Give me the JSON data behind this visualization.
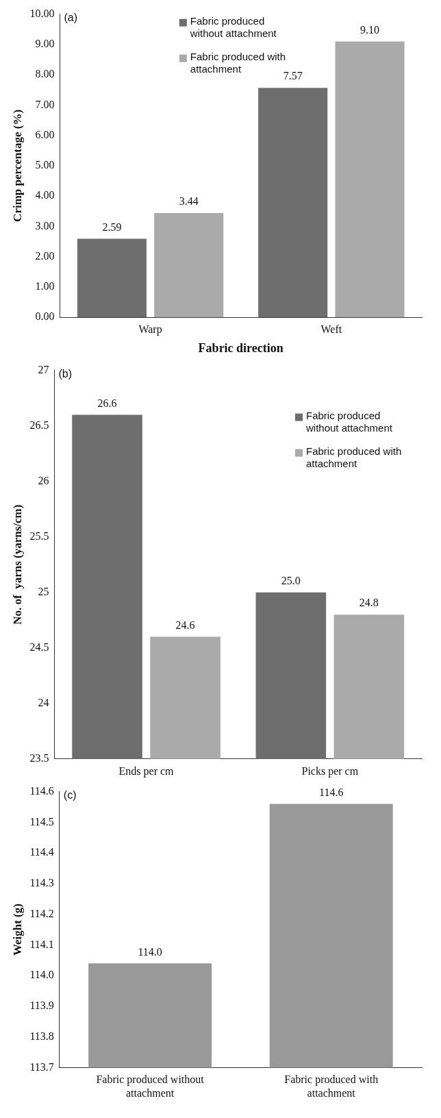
{
  "chart_data": [
    {
      "type": "bar",
      "title": "(a)",
      "xlabel": "Fabric direction",
      "ylabel": "Crimp percentage (%)",
      "categories": [
        "Warp",
        "Weft"
      ],
      "series": [
        {
          "name": "Fabric produced without attachment",
          "color": "#6e6e6e",
          "values": [
            2.59,
            7.57
          ],
          "value_labels": [
            "2.59",
            "7.57"
          ]
        },
        {
          "name": "Fabric produced with attachment",
          "color": "#aaaaaa",
          "values": [
            3.44,
            9.1
          ],
          "value_labels": [
            "3.44",
            "9.10"
          ]
        }
      ],
      "ylim": [
        0,
        10
      ],
      "yticks": [
        {
          "value": 0,
          "label": "0.00"
        },
        {
          "value": 1,
          "label": "1.00"
        },
        {
          "value": 2,
          "label": "2.00"
        },
        {
          "value": 3,
          "label": "3.00"
        },
        {
          "value": 4,
          "label": "4.00"
        },
        {
          "value": 5,
          "label": "5.00"
        },
        {
          "value": 6,
          "label": "6.00"
        },
        {
          "value": 7,
          "label": "7.00"
        },
        {
          "value": 8,
          "label": "8.00"
        },
        {
          "value": 9,
          "label": "9.00"
        },
        {
          "value": 10,
          "label": "10.00"
        }
      ],
      "grid": false,
      "legend": "top"
    },
    {
      "type": "bar",
      "title": "(b)",
      "ylabel": "No. of  yarns (yarns/cm)",
      "categories": [
        "Ends per cm",
        "Picks per cm"
      ],
      "series": [
        {
          "name": "Fabric produced without attachment",
          "color": "#6e6e6e",
          "values": [
            26.6,
            25.0
          ],
          "value_labels": [
            "26.6",
            "25.0"
          ]
        },
        {
          "name": "Fabric produced with attachment",
          "color": "#aaaaaa",
          "values": [
            24.6,
            24.8
          ],
          "value_labels": [
            "24.6",
            "24.8"
          ]
        }
      ],
      "ylim": [
        23.5,
        27
      ],
      "yticks": [
        23.5,
        24,
        24.5,
        25,
        25.5,
        26,
        26.5,
        27
      ],
      "grid": false,
      "legend": "top right"
    },
    {
      "type": "bar",
      "title": "(c)",
      "ylabel": "Weight (g)",
      "categories": [
        "Fabric produced without attachment",
        "Fabric produced with attachment"
      ],
      "series": [
        {
          "color": "#999999",
          "values": [
            114.04,
            114.56
          ],
          "value_labels": [
            "114.0",
            "114.6"
          ]
        }
      ],
      "ylim": [
        113.7,
        114.6
      ],
      "yticks": [
        113.7,
        113.8,
        113.9,
        {
          "value": 114,
          "label": "114.0"
        },
        114.1,
        114.2,
        114.3,
        114.4,
        114.5,
        114.6
      ],
      "grid": false
    }
  ]
}
